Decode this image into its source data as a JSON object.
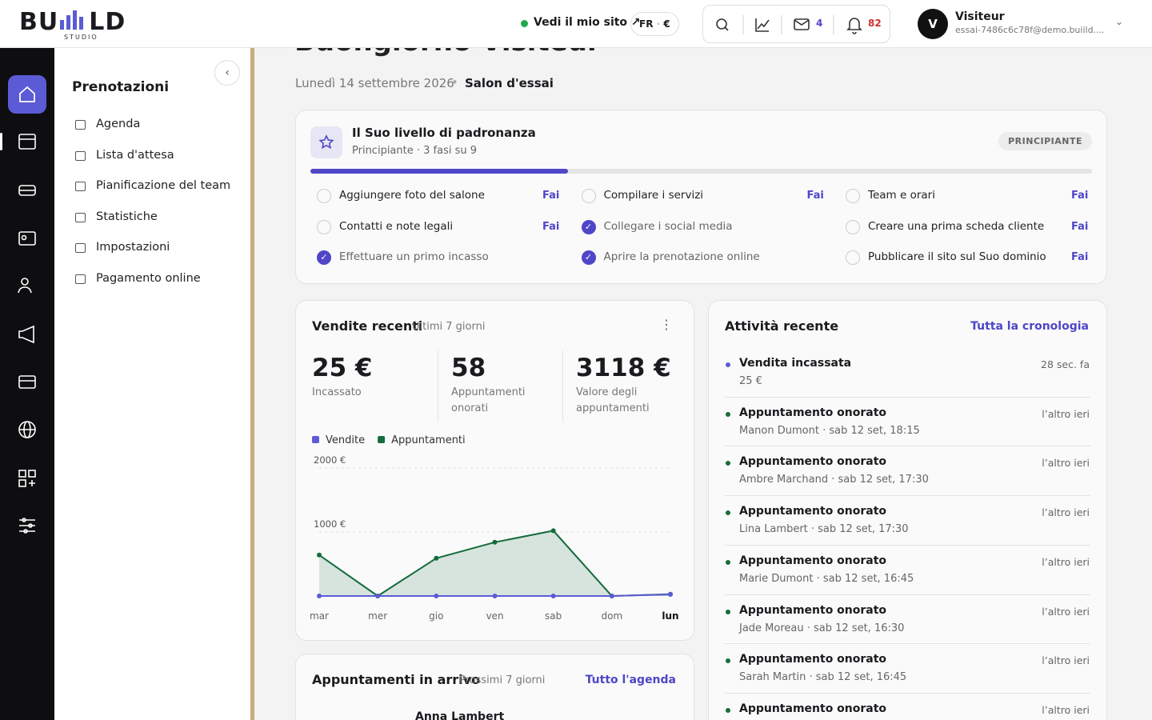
{
  "header": {
    "logo": "BU",
    "logo_end": "LD",
    "logo_sub": "STUDIO",
    "site_link": "Vedi il mio sito ↗",
    "lang": "FR",
    "currency": "€",
    "mail_count": "4",
    "bell_count": "82",
    "user_initial": "V",
    "user_name": "Visiteur",
    "user_email": "essai-7486c6c78f@demo.buiild...."
  },
  "sidebar": {
    "title": "Prenotazioni",
    "items": [
      "Agenda",
      "Lista d'attesa",
      "Pianificazione del team",
      "Statistiche",
      "Impostazioni",
      "Pagamento online"
    ]
  },
  "page": {
    "greeting": "Buongiorno Visiteur",
    "date": "Lunedì 14 settembre 2026",
    "salon": "Salon d'essai"
  },
  "mastery": {
    "title": "Il Suo livello di padronanza",
    "subtitle": "Principiante · 3 fasi su 9",
    "badge": "PRINCIPIANTE",
    "progress": 33,
    "tasks": [
      {
        "label": "Aggiungere foto del salone",
        "done": false,
        "action": "Fai"
      },
      {
        "label": "Compilare i servizi",
        "done": false,
        "action": "Fai"
      },
      {
        "label": "Team e orari",
        "done": false,
        "action": "Fai"
      },
      {
        "label": "Contatti e note legali",
        "done": false,
        "action": "Fai"
      },
      {
        "label": "Collegare i social media",
        "done": true
      },
      {
        "label": "Creare una prima scheda cliente",
        "done": false,
        "action": "Fai"
      },
      {
        "label": "Effettuare un primo incasso",
        "done": true
      },
      {
        "label": "Aprire la prenotazione online",
        "done": true
      },
      {
        "label": "Pubblicare il sito sul Suo dominio",
        "done": false,
        "action": "Fai"
      }
    ]
  },
  "sales": {
    "title": "Vendite recenti",
    "period": "Ultimi 7 giorni",
    "kpis": [
      {
        "value": "25 €",
        "label": "Incassato"
      },
      {
        "value": "58",
        "label": "Appuntamenti onorati"
      },
      {
        "value": "3118 €",
        "label": "Valore degli appuntamenti"
      }
    ],
    "chart_data": {
      "type": "line",
      "categories": [
        "mar",
        "mer",
        "gio",
        "ven",
        "sab",
        "dom",
        "lun"
      ],
      "ylim": [
        0,
        2000
      ],
      "yticks": [
        {
          "value": 1000,
          "label": "1000 €"
        },
        {
          "value": 2000,
          "label": "2000 €"
        }
      ],
      "grid": true,
      "series": [
        {
          "name": "Vendite",
          "color": "#5b5bd6",
          "values": [
            0,
            0,
            0,
            0,
            0,
            0,
            25
          ]
        },
        {
          "name": "Appuntamenti",
          "color": "#146c3c",
          "values": [
            640,
            0,
            590,
            840,
            1020,
            0,
            28
          ]
        }
      ]
    }
  },
  "activity": {
    "title": "Attività recente",
    "link": "Tutta la cronologia",
    "items": [
      {
        "title": "Vendita incassata",
        "detail": "25 €",
        "time": "28 sec. fa",
        "color": "#5b5bd6"
      },
      {
        "title": "Appuntamento onorato",
        "detail": "Manon Dumont · sab 12 set, 18:15",
        "time": "l’altro ieri",
        "color": "#146c3c"
      },
      {
        "title": "Appuntamento onorato",
        "detail": "Ambre Marchand · sab 12 set, 17:30",
        "time": "l’altro ieri",
        "color": "#146c3c"
      },
      {
        "title": "Appuntamento onorato",
        "detail": "Lina Lambert · sab 12 set, 17:30",
        "time": "l’altro ieri",
        "color": "#146c3c"
      },
      {
        "title": "Appuntamento onorato",
        "detail": "Marie Dumont · sab 12 set, 16:45",
        "time": "l’altro ieri",
        "color": "#146c3c"
      },
      {
        "title": "Appuntamento onorato",
        "detail": "Jade Moreau · sab 12 set, 16:30",
        "time": "l’altro ieri",
        "color": "#146c3c"
      },
      {
        "title": "Appuntamento onorato",
        "detail": "Sarah Martin · sab 12 set, 16:45",
        "time": "l’altro ieri",
        "color": "#146c3c"
      },
      {
        "title": "Appuntamento onorato",
        "time": "l’altro ieri",
        "color": "#146c3c"
      }
    ]
  },
  "upcoming": {
    "title": "Appuntamenti in arrivo",
    "period": "Prossimi 7 giorni",
    "link": "Tutto l'agenda",
    "first": "Anna Lambert"
  }
}
